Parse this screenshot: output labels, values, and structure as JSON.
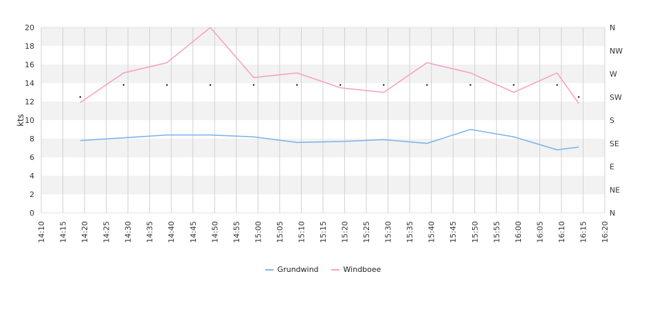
{
  "chart_data": {
    "type": "line",
    "ylabel": "kts",
    "ylim": [
      0,
      20
    ],
    "y_ticks": [
      "0",
      "2",
      "4",
      "6",
      "8",
      "10",
      "12",
      "14",
      "16",
      "18",
      "20"
    ],
    "y2_ticks": [
      "N",
      "NE",
      "E",
      "SE",
      "S",
      "SW",
      "W",
      "NW",
      "N"
    ],
    "x_ticks": [
      "14:10",
      "14:15",
      "14:20",
      "14:25",
      "14:30",
      "14:35",
      "14:40",
      "14:45",
      "14:50",
      "14:55",
      "15:00",
      "15:05",
      "15:10",
      "15:15",
      "15:20",
      "15:25",
      "15:30",
      "15:35",
      "15:40",
      "15:45",
      "15:50",
      "15:55",
      "16:00",
      "16:05",
      "16:10",
      "16:15",
      "16:20"
    ],
    "x_range": [
      "14:10",
      "16:20"
    ],
    "grid": true,
    "legend_position": "bottom",
    "series": [
      {
        "name": "Grundwind",
        "color": "#7cb5ec",
        "x": [
          "14:19",
          "14:29",
          "14:39",
          "14:49",
          "14:59",
          "15:09",
          "15:19",
          "15:29",
          "15:39",
          "15:49",
          "15:59",
          "16:09",
          "16:14"
        ],
        "values": [
          7.8,
          8.1,
          8.4,
          8.4,
          8.2,
          7.6,
          7.7,
          7.9,
          7.5,
          9.0,
          8.2,
          6.8,
          7.1
        ]
      },
      {
        "name": "Windboee",
        "color": "#f7a1c4",
        "x": [
          "14:19",
          "14:29",
          "14:39",
          "14:49",
          "14:59",
          "15:09",
          "15:19",
          "15:29",
          "15:39",
          "15:49",
          "15:59",
          "16:09",
          "16:14"
        ],
        "values": [
          11.9,
          15.1,
          16.2,
          20.0,
          14.6,
          15.1,
          13.5,
          13.0,
          16.2,
          15.1,
          13.0,
          15.1,
          11.8
        ]
      }
    ],
    "direction_markers": {
      "x": [
        "14:19",
        "14:29",
        "14:39",
        "14:49",
        "14:59",
        "15:09",
        "15:19",
        "15:29",
        "15:39",
        "15:49",
        "15:59",
        "16:09",
        "16:14"
      ],
      "values": [
        12.5,
        13.8,
        13.8,
        13.8,
        13.8,
        13.8,
        13.8,
        13.8,
        13.8,
        13.8,
        13.8,
        13.8,
        12.5
      ]
    }
  }
}
